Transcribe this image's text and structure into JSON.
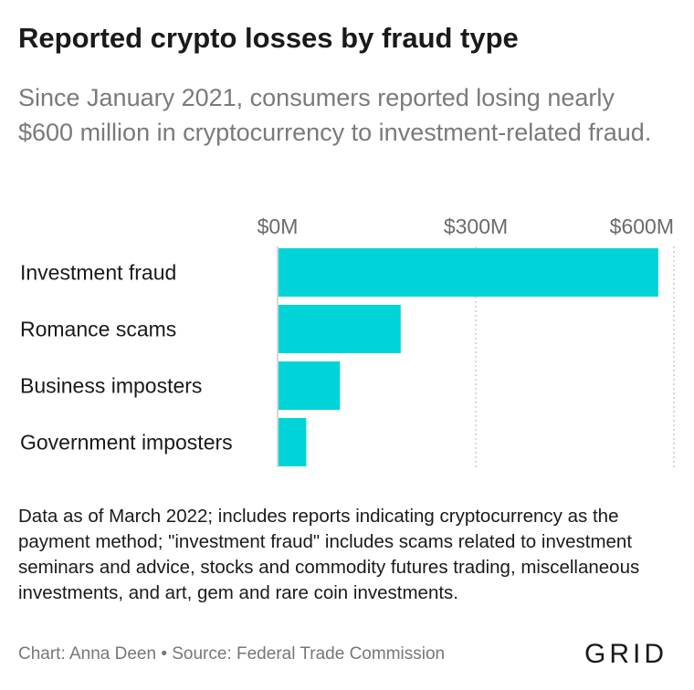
{
  "title": "Reported crypto losses by fraud type",
  "subtitle": "Since January 2021, consumers reported losing nearly $600 million in cryptocurrency to investment-related fraud.",
  "note": "Data as of March 2022; includes reports indicating cryptocurrency as the payment method; \"investment fraud\" includes scams related to investment seminars and advice, stocks and commodity futures trading, miscellaneous investments, and art, gem and rare coin investments.",
  "source": "Chart: Anna Deen • Source: Federal Trade Commission",
  "logo": "GRID",
  "colors": {
    "bar": "#00d4d8",
    "grid": "#cccccc",
    "axis": "#cccccc"
  },
  "chart_data": {
    "type": "bar",
    "orientation": "horizontal",
    "categories": [
      "Investment fraud",
      "Romance scams",
      "Business imposters",
      "Government imposters"
    ],
    "values": [
      575,
      185,
      93,
      42
    ],
    "xlim": [
      0,
      600
    ],
    "ticks": [
      0,
      300,
      600
    ],
    "tick_labels": [
      "$0M",
      "$300M",
      "$600M"
    ],
    "grid": true,
    "legend": "none"
  }
}
